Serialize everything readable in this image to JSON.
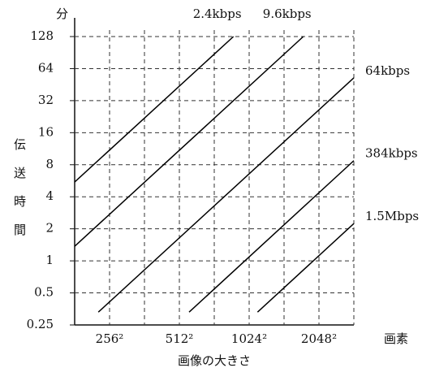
{
  "chart_data": {
    "type": "line",
    "y_unit": "分",
    "ylabel": "伝送時間",
    "x_unit": "画素",
    "xlabel": "画像の大きさ",
    "xscale": "log",
    "yscale": "log",
    "grid": true,
    "xlim": [
      181,
      2896
    ],
    "ylim": [
      0.25,
      128
    ],
    "xticks": [
      {
        "value": 256,
        "label": "256²"
      },
      {
        "value": 362,
        "label": null
      },
      {
        "value": 512,
        "label": "512²"
      },
      {
        "value": 724,
        "label": null
      },
      {
        "value": 1024,
        "label": "1024²"
      },
      {
        "value": 1448,
        "label": null
      },
      {
        "value": 2048,
        "label": "2048²"
      },
      {
        "value": 2896,
        "label": null
      }
    ],
    "yticks": [
      0.25,
      0.5,
      1,
      2,
      4,
      8,
      16,
      32,
      64,
      128
    ],
    "series": [
      {
        "name": "2.4kbps",
        "color": "#000000",
        "x": [
          181,
          876
        ],
        "values": [
          5.5,
          128
        ]
      },
      {
        "name": "9.6kbps",
        "color": "#000000",
        "x": [
          181,
          1753
        ],
        "values": [
          1.37,
          128
        ]
      },
      {
        "name": "64kbps",
        "color": "#000000",
        "x": [
          229,
          2896
        ],
        "values": [
          0.33,
          52.4
        ]
      },
      {
        "name": "384kbps",
        "color": "#000000",
        "x": [
          564,
          2896
        ],
        "values": [
          0.33,
          8.74
        ]
      },
      {
        "name": "1.5Mbps",
        "color": "#000000",
        "x": [
          1113,
          2896
        ],
        "values": [
          0.33,
          2.24
        ]
      }
    ]
  }
}
